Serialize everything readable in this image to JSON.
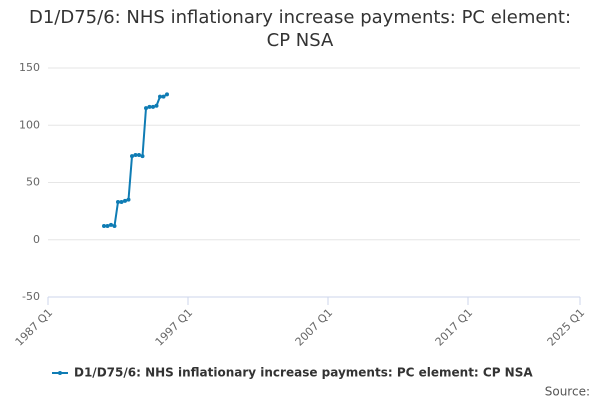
{
  "chart_data": {
    "type": "line",
    "title": "D1/D75/6: NHS inflationary increase payments: PC element: CP NSA",
    "x": [
      "1991 Q1",
      "1991 Q2",
      "1991 Q3",
      "1991 Q4",
      "1992 Q1",
      "1992 Q2",
      "1992 Q3",
      "1992 Q4",
      "1993 Q1",
      "1993 Q2",
      "1993 Q3",
      "1993 Q4",
      "1994 Q1",
      "1994 Q2",
      "1994 Q3",
      "1994 Q4",
      "1995 Q1",
      "1995 Q2",
      "1995 Q3"
    ],
    "series": [
      {
        "name": "D1/D75/6: NHS inflationary increase payments: PC element: CP NSA",
        "color": "#0f7cb4",
        "values": [
          12,
          12,
          13,
          12,
          33,
          33,
          34,
          35,
          73,
          74,
          74,
          73,
          115,
          116,
          116,
          117,
          125,
          125,
          127
        ]
      }
    ],
    "xlim": [
      "1987 Q1",
      "2025 Q1"
    ],
    "xticks": [
      "1987 Q1",
      "1997 Q1",
      "2007 Q1",
      "2017 Q1",
      "2025 Q1"
    ],
    "ylim": [
      -50,
      150
    ],
    "yticks": [
      -50,
      0,
      50,
      100,
      150
    ],
    "grid": true,
    "source": "Source:"
  }
}
